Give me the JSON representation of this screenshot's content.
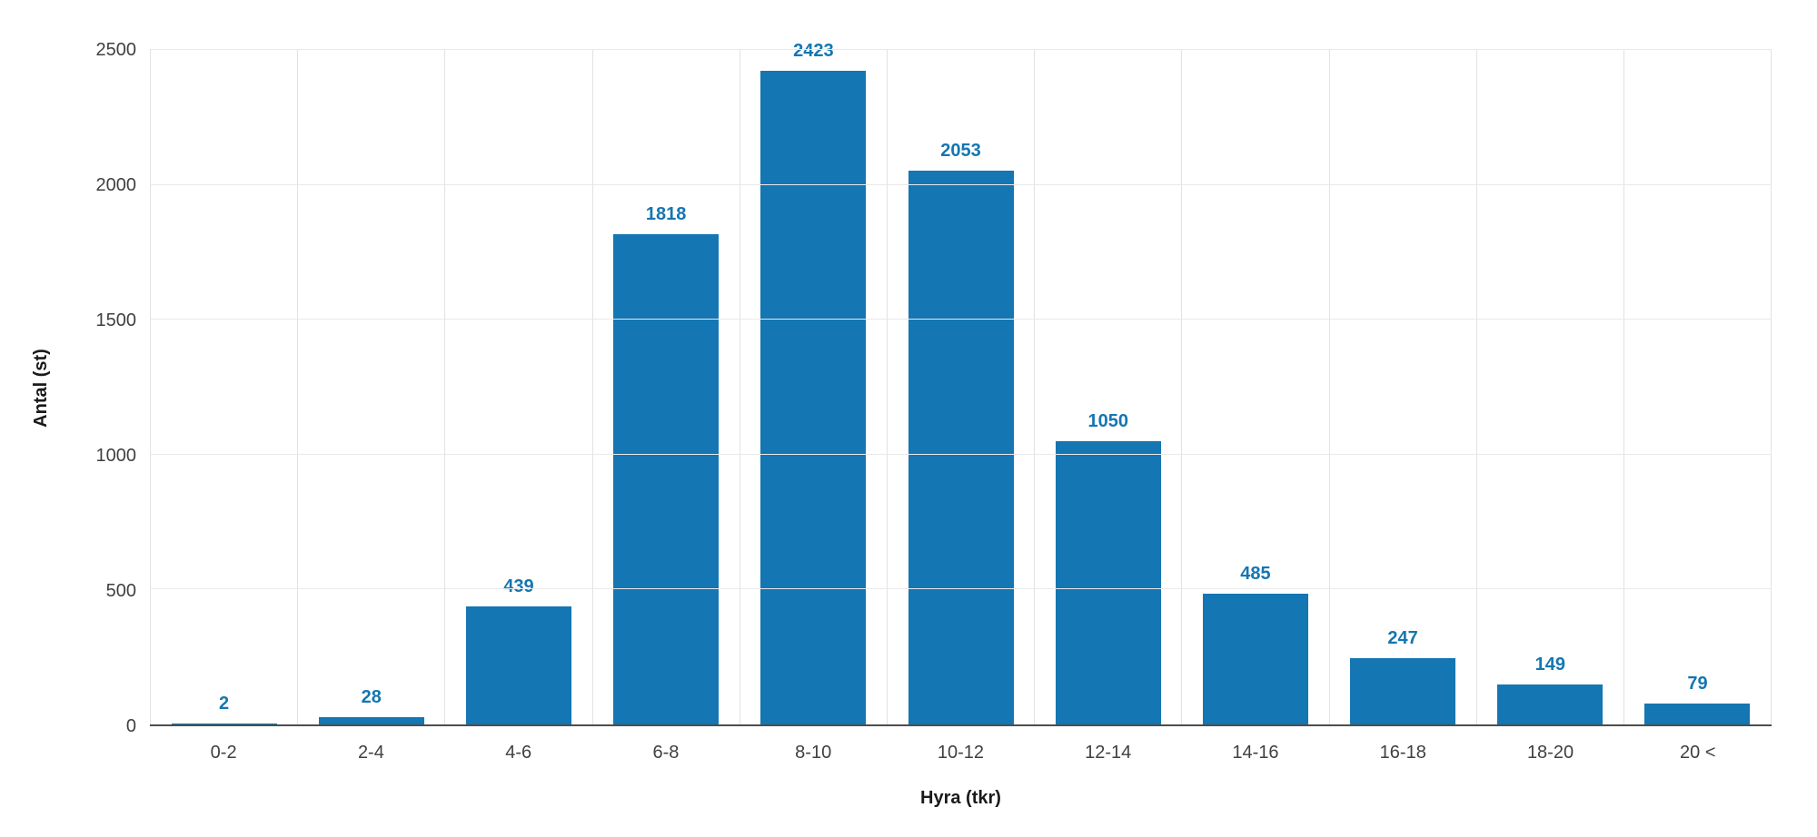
{
  "chart_data": {
    "type": "bar",
    "title": "",
    "categories": [
      "0-2",
      "2-4",
      "4-6",
      "6-8",
      "8-10",
      "10-12",
      "12-14",
      "14-16",
      "16-18",
      "18-20",
      "20 <"
    ],
    "values": [
      2,
      28,
      439,
      1818,
      2423,
      2053,
      1050,
      485,
      247,
      149,
      79
    ],
    "xlabel": "Hyra (tkr)",
    "ylabel": "Antal (st)",
    "ylim": [
      0,
      2500
    ],
    "yticks": [
      0,
      500,
      1000,
      1500,
      2000,
      2500
    ],
    "grid": true,
    "legend": "none",
    "bar_color": "#1476b2",
    "label_color": "#1476b2",
    "gridline_color": "#e6e6e6",
    "axis_line_color": "#4d4d4d"
  }
}
